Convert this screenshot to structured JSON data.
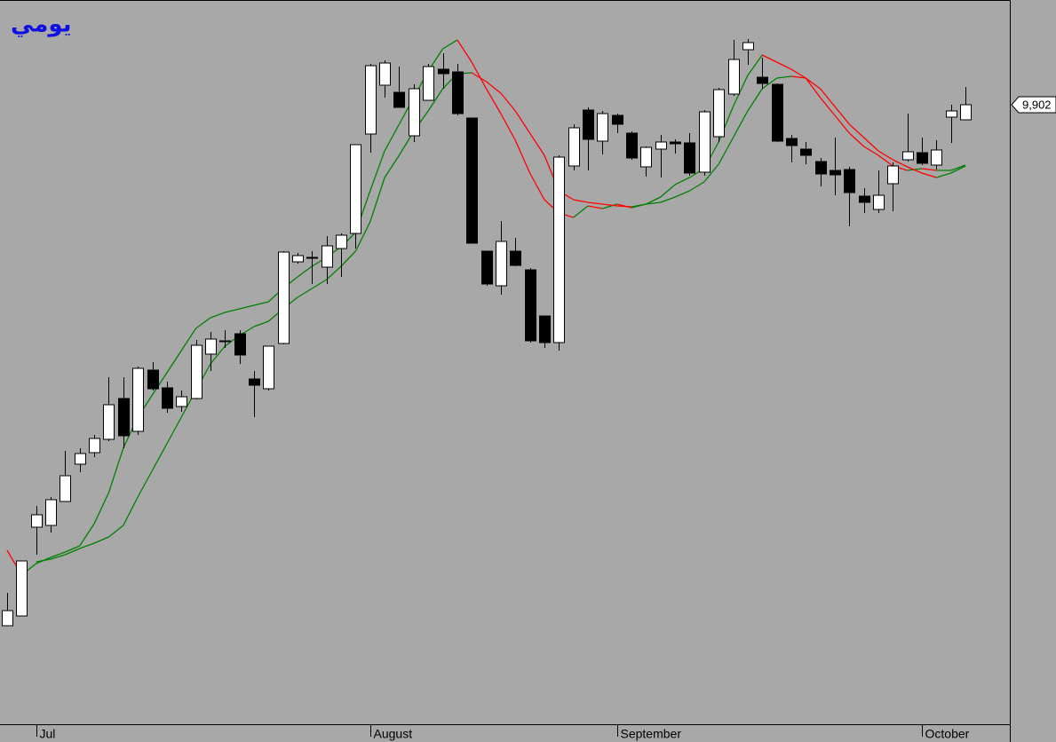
{
  "chart_data": {
    "type": "candlestick",
    "title": "يومي",
    "title_color": "#1010e0",
    "background": "#a8a8a8",
    "up_color": "#ffffff",
    "down_color": "#000000",
    "rise_color": "#008000",
    "fall_color": "#ff0000",
    "categories": [
      null,
      null,
      null,
      null,
      null,
      null,
      null,
      null,
      null,
      null,
      null,
      null,
      null,
      null,
      null,
      null,
      null,
      null,
      null,
      null,
      null,
      null,
      null,
      null,
      null,
      null,
      null,
      null,
      null,
      null,
      null,
      null,
      null,
      null,
      null,
      null,
      null,
      null,
      null,
      null,
      null,
      null,
      null,
      null,
      null,
      null,
      null,
      null,
      null,
      null,
      null,
      null,
      null,
      null,
      null,
      null,
      null,
      null,
      null,
      null,
      null,
      null,
      null,
      null,
      null,
      null,
      null
    ],
    "open": [
      8141,
      8174,
      8474,
      8480,
      8561,
      8687,
      8726,
      8771,
      8909,
      8798,
      9005,
      8945,
      8882,
      8909,
      9059,
      9104,
      9128,
      8975,
      8942,
      9095,
      9371,
      9386,
      9353,
      9416,
      9467,
      9803,
      9968,
      9944,
      9797,
      9917,
      10022,
      10013,
      9857,
      9407,
      9290,
      9407,
      9344,
      9188,
      9098,
      9695,
      9884,
      9779,
      9866,
      9806,
      9692,
      9752,
      9776,
      9773,
      9674,
      9794,
      9938,
      10088,
      9995,
      9971,
      9788,
      9752,
      9710,
      9680,
      9683,
      9593,
      9548,
      9635,
      9716,
      9740,
      9698,
      9860,
      9851
    ],
    "high": [
      8252,
      8360,
      8546,
      8576,
      8732,
      8741,
      8786,
      8981,
      8981,
      9017,
      9032,
      8966,
      8936,
      9107,
      9134,
      9140,
      9140,
      9002,
      9086,
      9407,
      9401,
      9407,
      9458,
      9467,
      9767,
      10040,
      10052,
      10031,
      9971,
      10040,
      10076,
      10040,
      9857,
      9407,
      9509,
      9452,
      9350,
      9188,
      9731,
      9836,
      9893,
      9881,
      9872,
      9812,
      9761,
      9800,
      9785,
      9806,
      9884,
      9959,
      10121,
      10124,
      10061,
      9974,
      9800,
      9776,
      9722,
      9791,
      9692,
      9620,
      9680,
      9707,
      9872,
      9791,
      9782,
      9902,
      9962
    ],
    "low": [
      8141,
      8174,
      8381,
      8456,
      8561,
      8660,
      8711,
      8765,
      8741,
      8786,
      8936,
      8861,
      8864,
      8906,
      9002,
      9080,
      9026,
      8846,
      8936,
      9092,
      9365,
      9296,
      9296,
      9320,
      9416,
      9740,
      9926,
      9893,
      9776,
      9917,
      9956,
      9866,
      9434,
      9290,
      9260,
      9356,
      9098,
      9080,
      9071,
      9680,
      9680,
      9734,
      9806,
      9716,
      9659,
      9656,
      9737,
      9662,
      9662,
      9776,
      9932,
      10037,
      9956,
      9776,
      9707,
      9701,
      9626,
      9596,
      9491,
      9536,
      9536,
      9542,
      9710,
      9698,
      9683,
      9773,
      9851
    ],
    "close": [
      8192,
      8360,
      8516,
      8567,
      8648,
      8723,
      8774,
      8888,
      8783,
      9011,
      8942,
      8876,
      8915,
      9089,
      9110,
      9104,
      9056,
      8954,
      9086,
      9404,
      9392,
      9386,
      9425,
      9461,
      9767,
      10034,
      10043,
      9893,
      9956,
      10031,
      10007,
      9872,
      9434,
      9296,
      9440,
      9359,
      9104,
      9098,
      9725,
      9824,
      9785,
      9872,
      9836,
      9722,
      9758,
      9776,
      9770,
      9671,
      9878,
      9953,
      10055,
      10112,
      9974,
      9779,
      9764,
      9731,
      9668,
      9665,
      9605,
      9572,
      9596,
      9695,
      9743,
      9704,
      9749,
      9881,
      9902
    ],
    "series": [
      {
        "values": [
          8396,
          8312,
          8351,
          8372,
          8390,
          8411,
          8486,
          8591,
          8741,
          8846,
          8921,
          8996,
          9071,
          9146,
          9182,
          9200,
          9212,
          9224,
          9236,
          9281,
          9320,
          9356,
          9386,
          9422,
          9470,
          9611,
          9746,
          9836,
          9926,
          10016,
          10091,
          10121,
          10046,
          9956,
          9872,
          9782,
          9671,
          9581,
          9536,
          9521,
          9560,
          9551,
          9566,
          9554,
          9566,
          9590,
          9632,
          9656,
          9686,
          9776,
          9896,
          10001,
          10070,
          10046,
          10022,
          9992,
          9926,
          9866,
          9806,
          9761,
          9731,
          9695,
          9680,
          9686,
          9680,
          9680,
          9698
        ]
      },
      {
        "values": [
          null,
          null,
          8357,
          8366,
          8381,
          8402,
          8420,
          8441,
          8480,
          8576,
          8666,
          8756,
          8846,
          8936,
          9026,
          9086,
          9122,
          9152,
          9170,
          9212,
          9251,
          9281,
          9311,
          9356,
          9407,
          9506,
          9656,
          9731,
          9812,
          9881,
          9956,
          10007,
          10010,
          9980,
          9941,
          9881,
          9806,
          9731,
          9611,
          9581,
          9572,
          9566,
          9560,
          9557,
          9566,
          9572,
          9590,
          9611,
          9641,
          9701,
          9791,
          9881,
          9956,
          9992,
          9998,
          9992,
          9956,
          9896,
          9836,
          9791,
          9746,
          9716,
          9692,
          9671,
          9656,
          9671,
          9695
        ]
      }
    ],
    "ylim": [
      7820,
      10250
    ],
    "xticks": [
      {
        "value": 2,
        "label": "Jul"
      },
      {
        "value": 25,
        "label": "August"
      },
      {
        "value": 42,
        "label": "September"
      },
      {
        "value": 63,
        "label": "October"
      }
    ],
    "last_price": {
      "value": 9902,
      "label": "9,902"
    }
  }
}
